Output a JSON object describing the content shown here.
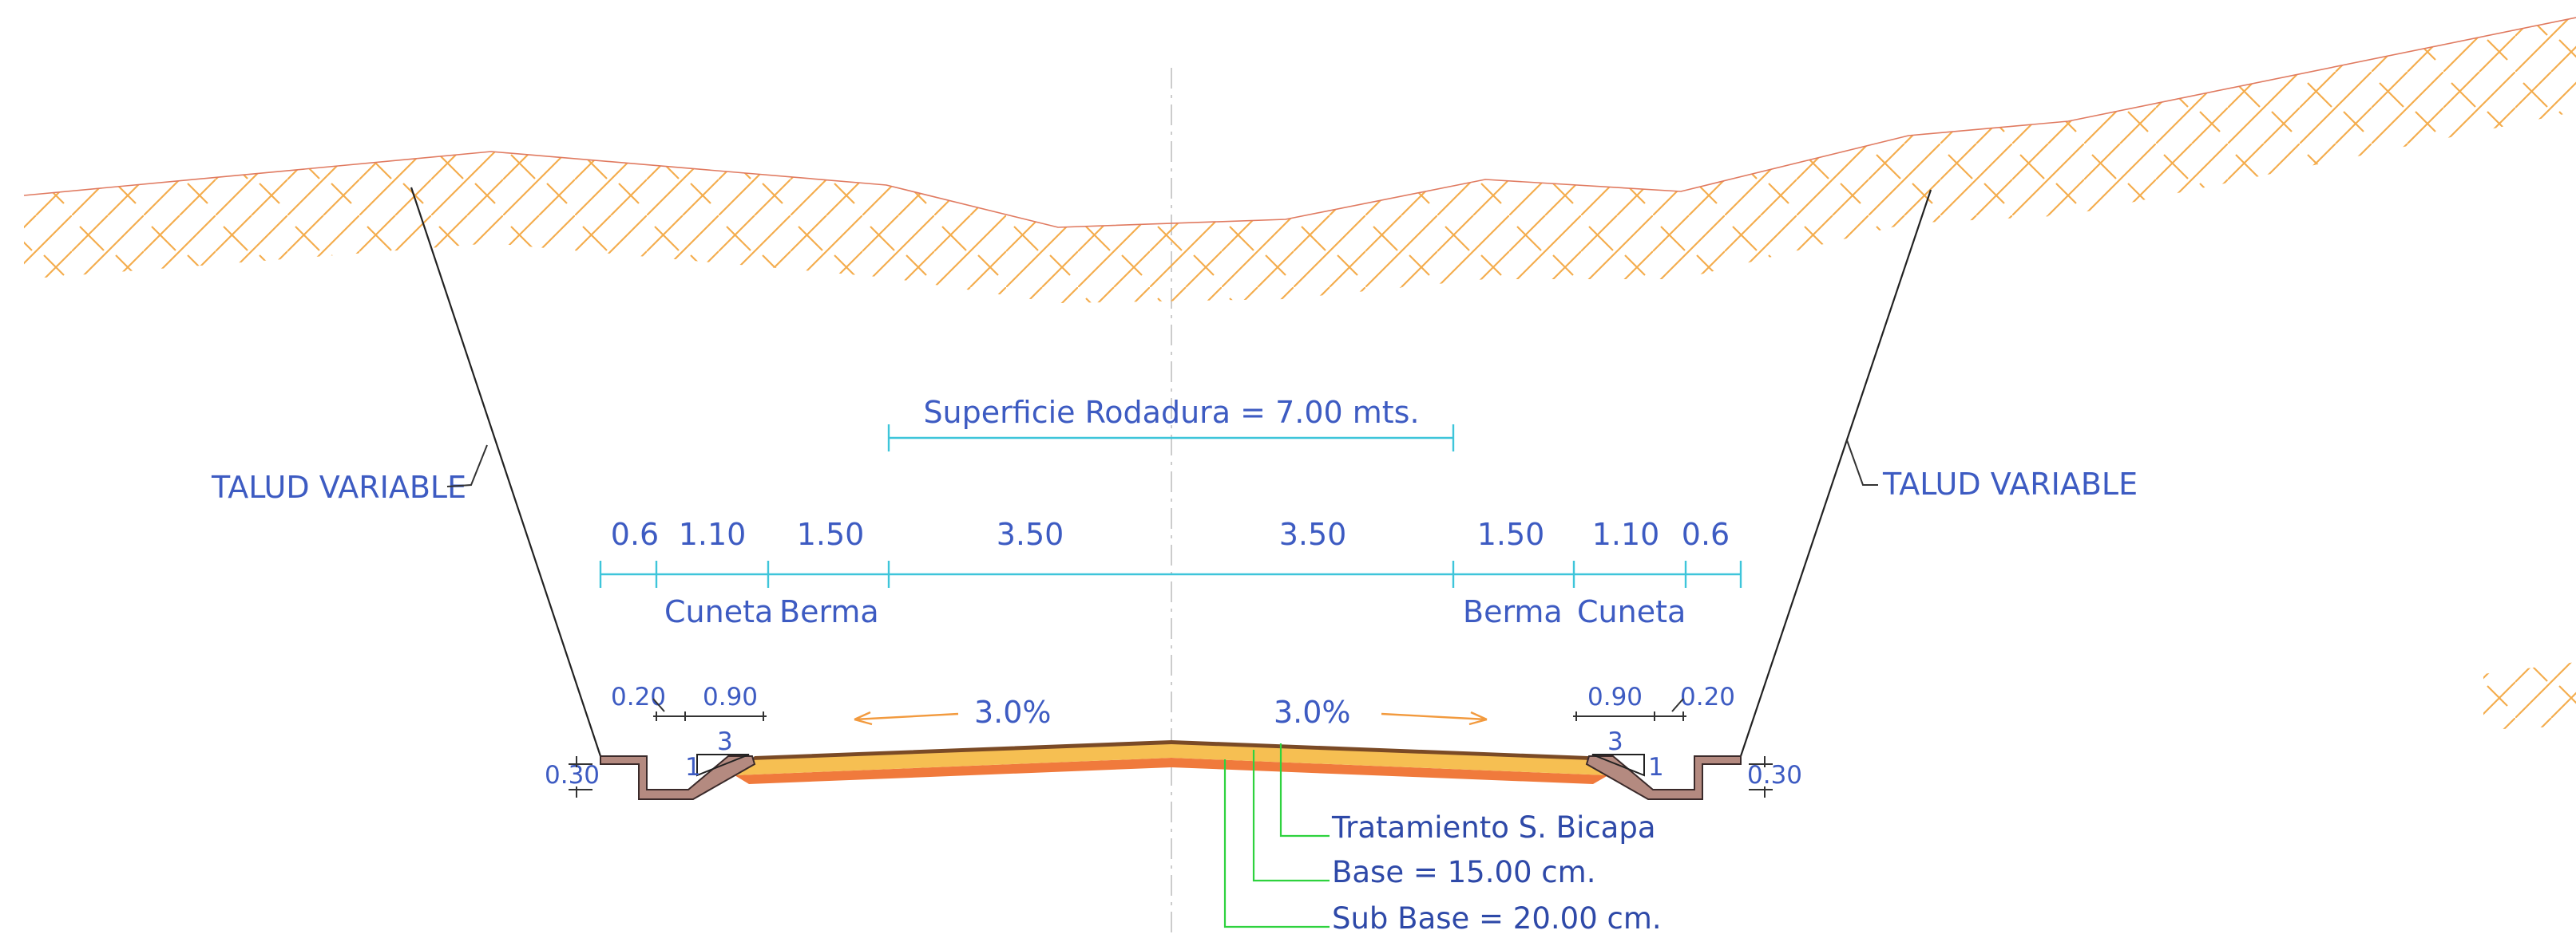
{
  "labels": {
    "talud_left": "TALUD VARIABLE",
    "talud_right": "TALUD VARIABLE",
    "superficie": "Superficie Rodadura = 7.00 mts.",
    "dims": [
      "0.6",
      "1.10",
      "1.50",
      "3.50",
      "3.50",
      "1.50",
      "1.10",
      "0.6"
    ],
    "cuneta_left": "Cuneta",
    "berma_left": "Berma",
    "berma_right": "Berma",
    "cuneta_right": "Cuneta",
    "slope_left": "3.0%",
    "slope_right": "3.0%",
    "ditch_left": {
      "top_small": "0.20",
      "top_wide": "0.90",
      "ratio_h": "3",
      "ratio_v": "1",
      "depth": "0.30"
    },
    "ditch_right": {
      "top_small": "0.20",
      "top_wide": "0.90",
      "ratio_h": "3",
      "ratio_v": "1",
      "depth": "0.30"
    },
    "layers": {
      "tratamiento": "Tratamiento S. Bicapa",
      "base": "Base = 15.00 cm.",
      "subbase": "Sub Base = 20.00 cm."
    }
  },
  "colors": {
    "text": "#3d5bc2",
    "dimension": "#3ec5da",
    "hatch": "#f4ad4e",
    "surface_layer": "#f6bf52",
    "base_layer": "#f07a3c",
    "ditch_concrete": "#b48a80",
    "leader_green": "#2ed23e",
    "slope_arrow": "#f29a3e"
  }
}
